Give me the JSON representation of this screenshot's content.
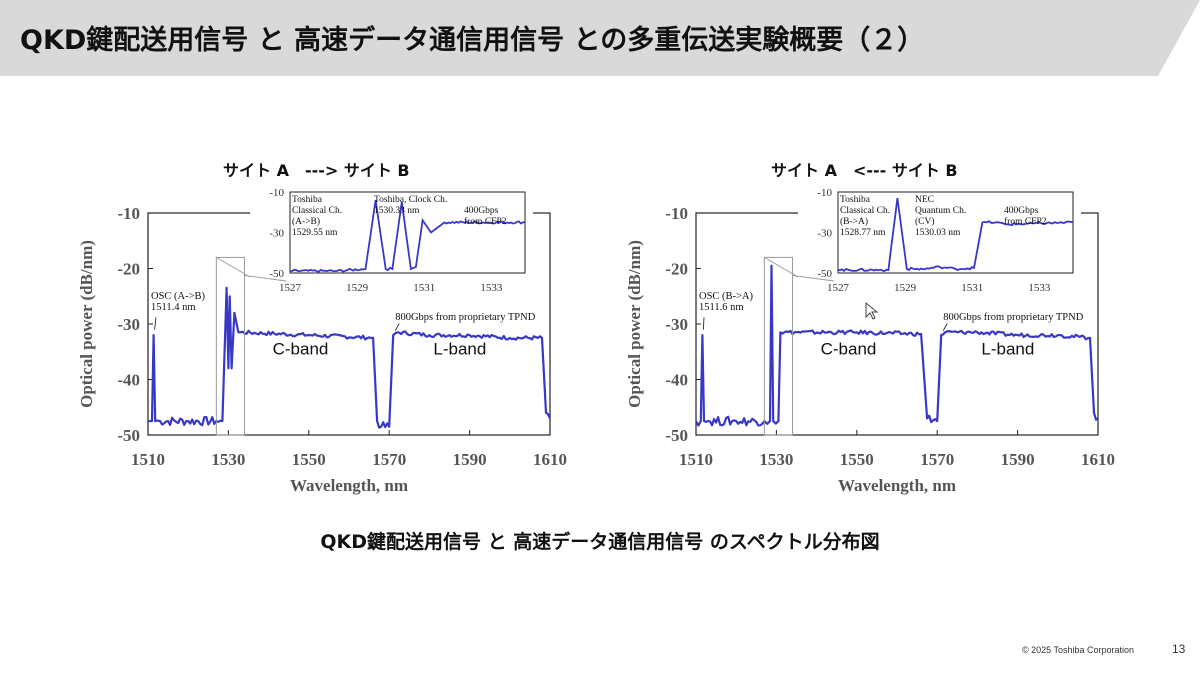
{
  "header": {
    "title": "QKD鍵配送用信号 と 高速データ通信用信号 との多重伝送実験概要（２）"
  },
  "caption": "QKD鍵配送用信号 と 高速データ通信用信号 のスペクトル分布図",
  "footer": {
    "copyright": "© 2025 Toshiba Corporation",
    "page_number": "13"
  },
  "colors": {
    "banner": "#d9d9d9",
    "trace": "#3838c8",
    "axis": "#222222"
  },
  "chart_data": [
    {
      "type": "line",
      "direction_label": "サイト A　---> サイト B",
      "xlabel": "Wavelength, nm",
      "ylabel": "Optical power (dB/nm)",
      "xlim": [
        1510,
        1610
      ],
      "ylim": [
        -50,
        -10
      ],
      "xticks": [
        "1510",
        "1530",
        "1550",
        "1570",
        "1590",
        "1610"
      ],
      "yticks": [
        "-10",
        "-20",
        "-30",
        "-40",
        "-50"
      ],
      "band_labels": [
        "C-band",
        "L-band"
      ],
      "annotations": {
        "osc": [
          "OSC (A->B)",
          "1511.4 nm"
        ],
        "tpnd": "800Gbps from proprietary TPND"
      },
      "series": [
        {
          "x": [
            1510,
            1511.0,
            1511.4,
            1511.8,
            1513,
            1520,
            1527,
            1528.5,
            1529.55,
            1530.0,
            1530.33,
            1530.8,
            1531.5,
            1532.5,
            1533,
            1550,
            1566,
            1567,
            1568,
            1570,
            1571,
            1572,
            1580,
            1590,
            1600,
            1608,
            1609,
            1610
          ],
          "y": [
            -47.5,
            -47.5,
            -32,
            -47.5,
            -47.5,
            -47.5,
            -47.5,
            -47.5,
            -23.5,
            -38,
            -25,
            -38,
            -28,
            -31.5,
            -31.5,
            -32,
            -32.5,
            -47.5,
            -48.5,
            -48.5,
            -32,
            -31.5,
            -32,
            -32,
            -32.5,
            -32.5,
            -46,
            -47
          ]
        }
      ],
      "inset": {
        "xlim": [
          1527,
          1534
        ],
        "ylim": [
          -50,
          -10
        ],
        "xticks": [
          "1527",
          "1529",
          "1531",
          "1533"
        ],
        "yticks": [
          "-10",
          "-30",
          "-50"
        ],
        "labels": [
          [
            "Toshiba",
            "Classical Ch.",
            "(A->B)",
            "1529.55 nm"
          ],
          [
            "Toshiba, Clock Ch.",
            "1530.33 nm"
          ],
          [
            "400Gbps",
            "from CFP2"
          ]
        ],
        "series": [
          {
            "x": [
              1527,
              1528.4,
              1529.25,
              1529.55,
              1529.85,
              1530.05,
              1530.33,
              1530.6,
              1530.75,
              1530.95,
              1531.2,
              1531.6,
              1534
            ],
            "y": [
              -49,
              -49,
              -48,
              -14,
              -48,
              -48,
              -15,
              -48,
              -47,
              -24,
              -30,
              -25,
              -25
            ]
          }
        ]
      }
    },
    {
      "type": "line",
      "direction_label": "サイト A　<--- サイト B",
      "xlabel": "Wavelength, nm",
      "ylabel": "Optical power (dB/nm)",
      "xlim": [
        1510,
        1610
      ],
      "ylim": [
        -50,
        -10
      ],
      "xticks": [
        "1510",
        "1530",
        "1550",
        "1570",
        "1590",
        "1610"
      ],
      "yticks": [
        "-10",
        "-20",
        "-30",
        "-40",
        "-50"
      ],
      "band_labels": [
        "C-band",
        "L-band"
      ],
      "annotations": {
        "osc": [
          "OSC (B->A)",
          "1511.6 nm"
        ],
        "tpnd": "800Gbps from proprietary TPND"
      },
      "series": [
        {
          "x": [
            1510,
            1511.2,
            1511.6,
            1512.0,
            1513,
            1520,
            1527,
            1528.4,
            1528.77,
            1529.2,
            1530.5,
            1531,
            1532,
            1550,
            1566,
            1567.5,
            1570,
            1571,
            1572,
            1580,
            1590,
            1600,
            1608,
            1609,
            1610
          ],
          "y": [
            -47.5,
            -47.5,
            -32,
            -47.5,
            -47.5,
            -47.5,
            -47.5,
            -47.5,
            -19.5,
            -47.5,
            -47.5,
            -31.5,
            -31.5,
            -31.5,
            -31.8,
            -47,
            -47.5,
            -32,
            -31.5,
            -31.5,
            -32,
            -32,
            -32.5,
            -46,
            -47
          ]
        }
      ],
      "inset": {
        "xlim": [
          1527,
          1534
        ],
        "ylim": [
          -50,
          -10
        ],
        "xticks": [
          "1527",
          "1529",
          "1531",
          "1533"
        ],
        "yticks": [
          "-10",
          "-30",
          "-50"
        ],
        "labels": [
          [
            "Toshiba",
            "Classical Ch.",
            "(B->A)",
            "1528.77 nm"
          ],
          [
            "NEC",
            "Quantum Ch.",
            "(CV)",
            "1530.03 nm"
          ],
          [
            "400Gbps",
            "from CFP2"
          ]
        ],
        "series": [
          {
            "x": [
              1527,
              1528.5,
              1528.77,
              1529.05,
              1529.6,
              1530.03,
              1530.5,
              1531.05,
              1531.3,
              1531.7,
              1532.0,
              1534
            ],
            "y": [
              -48.5,
              -48.5,
              -13,
              -48,
              -48,
              -47,
              -48,
              -47.5,
              -25,
              -25,
              -26,
              -25
            ]
          }
        ]
      }
    }
  ]
}
